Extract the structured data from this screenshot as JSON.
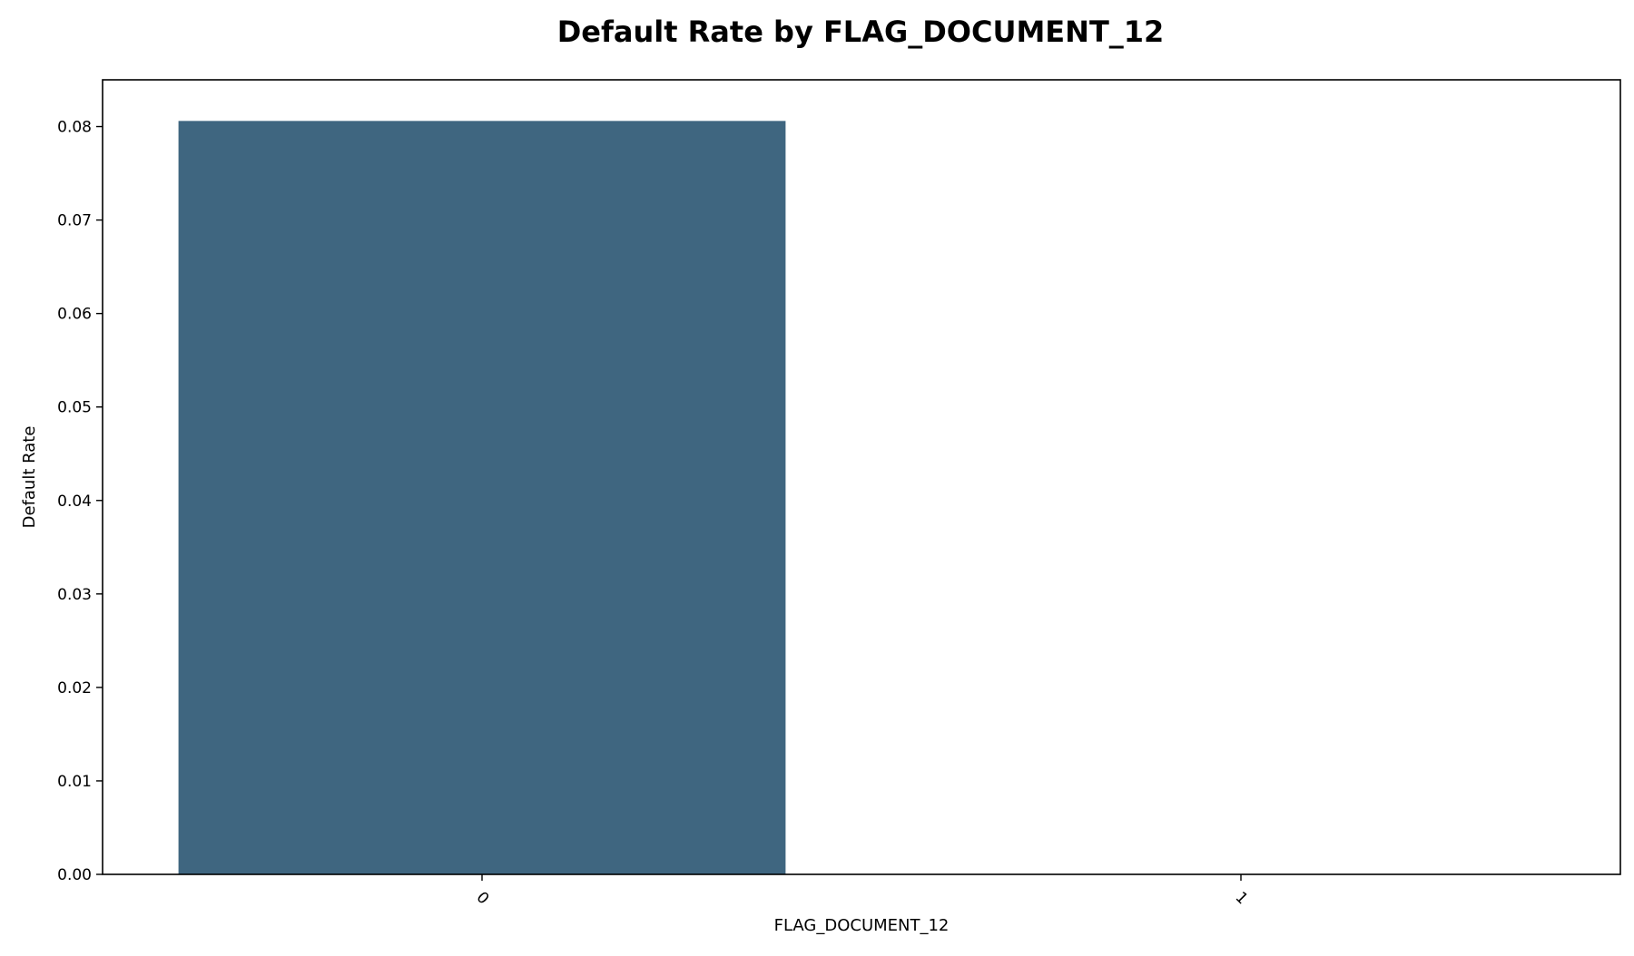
{
  "chart_data": {
    "type": "bar",
    "title": "Default Rate by FLAG_DOCUMENT_12",
    "xlabel": "FLAG_DOCUMENT_12",
    "ylabel": "Default Rate",
    "categories": [
      "0",
      "1"
    ],
    "values": [
      0.0806,
      0.0
    ],
    "ylim": [
      0.0,
      0.085
    ],
    "yticks": [
      "0.00",
      "0.01",
      "0.02",
      "0.03",
      "0.04",
      "0.05",
      "0.06",
      "0.07",
      "0.08"
    ],
    "grid": false,
    "legend": "none",
    "bar_color": "#3f6680",
    "tick_rotation_x": 45
  }
}
